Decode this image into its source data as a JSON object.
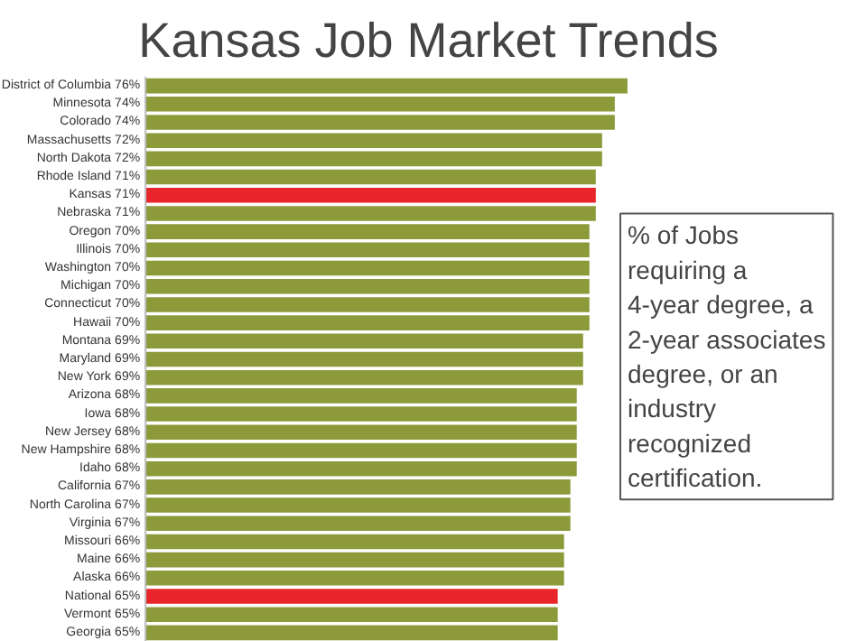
{
  "chart_data": {
    "type": "bar",
    "orientation": "horizontal",
    "title": "Kansas Job Market Trends",
    "categories": [
      "District of Columbia",
      "Minnesota",
      "Colorado",
      "Massachusetts",
      "North Dakota",
      "Rhode Island",
      "Kansas",
      "Nebraska",
      "Oregon",
      "Illinois",
      "Washington",
      "Michigan",
      "Connecticut",
      "Hawaii",
      "Montana",
      "Maryland",
      "New York",
      "Arizona",
      "Iowa",
      "New Jersey",
      "New Hampshire",
      "Idaho",
      "California",
      "North Carolina",
      "Virginia",
      "Missouri",
      "Maine",
      "Alaska",
      "National",
      "Vermont",
      "Georgia"
    ],
    "values": [
      76,
      74,
      74,
      72,
      72,
      71,
      71,
      71,
      70,
      70,
      70,
      70,
      70,
      70,
      69,
      69,
      69,
      68,
      68,
      68,
      68,
      68,
      67,
      67,
      67,
      66,
      66,
      66,
      65,
      65,
      65
    ],
    "value_labels": [
      "76%",
      "74%",
      "74%",
      "72%",
      "72%",
      "71%",
      "71%",
      "71%",
      "70%",
      "70%",
      "70%",
      "70%",
      "70%",
      "70%",
      "69%",
      "69%",
      "69%",
      "68%",
      "68%",
      "68%",
      "68%",
      "68%",
      "67%",
      "67%",
      "67%",
      "66%",
      "66%",
      "66%",
      "65%",
      "65%",
      "65%"
    ],
    "colors": [
      "#8c9a3a",
      "#8c9a3a",
      "#8c9a3a",
      "#8c9a3a",
      "#8c9a3a",
      "#8c9a3a",
      "#e8252b",
      "#8c9a3a",
      "#8c9a3a",
      "#8c9a3a",
      "#8c9a3a",
      "#8c9a3a",
      "#8c9a3a",
      "#8c9a3a",
      "#8c9a3a",
      "#8c9a3a",
      "#8c9a3a",
      "#8c9a3a",
      "#8c9a3a",
      "#8c9a3a",
      "#8c9a3a",
      "#8c9a3a",
      "#8c9a3a",
      "#8c9a3a",
      "#8c9a3a",
      "#8c9a3a",
      "#8c9a3a",
      "#8c9a3a",
      "#e8252b",
      "#8c9a3a",
      "#8c9a3a"
    ],
    "annotations": [
      "% of Jobs requiring a 4-year degree, a 2-year associates degree, or an industry recognized certification."
    ],
    "grid": false
  }
}
